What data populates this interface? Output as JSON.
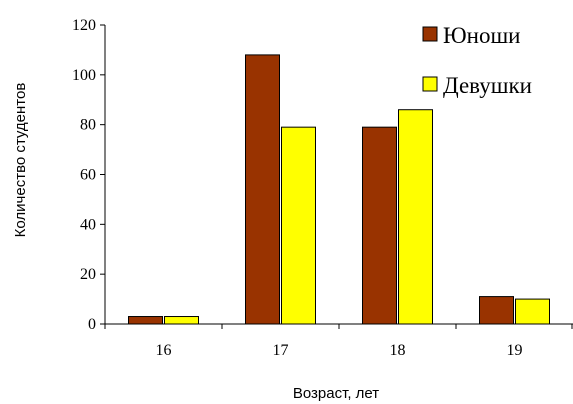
{
  "chart_data": {
    "type": "bar",
    "categories": [
      "16",
      "17",
      "18",
      "19"
    ],
    "series": [
      {
        "name": "Юноши",
        "values": [
          3,
          108,
          79,
          11
        ],
        "color": "#993300"
      },
      {
        "name": "Девушки",
        "values": [
          3,
          79,
          86,
          10
        ],
        "color": "#ffff00"
      }
    ],
    "xlabel": "Возраст, лет",
    "ylabel": "Количество студентов",
    "ylim": [
      0,
      120
    ],
    "yticks": [
      "0",
      "20",
      "40",
      "60",
      "80",
      "100",
      "120"
    ],
    "grid": false,
    "legend_position": "top-right"
  }
}
